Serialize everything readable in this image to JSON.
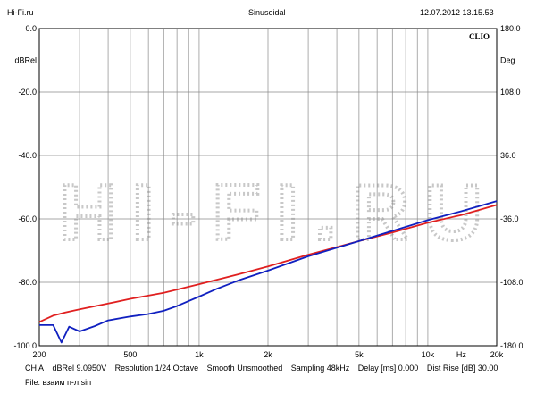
{
  "header": {
    "source": "Hi-Fi.ru",
    "mode": "Sinusoidal",
    "datetime": "12.07.2012 13.15.53"
  },
  "chart_data": {
    "type": "line",
    "brand": "CLIO",
    "watermark": "HI-FI.RU",
    "x_scale": "log",
    "xlim": [
      200,
      20000
    ],
    "x_tick_labels": [
      {
        "value": 200,
        "label": "200"
      },
      {
        "value": 500,
        "label": "500"
      },
      {
        "value": 1000,
        "label": "1k"
      },
      {
        "value": 2000,
        "label": "2k"
      },
      {
        "value": 5000,
        "label": "5k"
      },
      {
        "value": 10000,
        "label": "10k"
      },
      {
        "value": 20000,
        "label": "20k"
      }
    ],
    "x_unit_label": "Hz",
    "x_gridlines": [
      200,
      300,
      400,
      500,
      600,
      700,
      800,
      900,
      1000,
      2000,
      3000,
      4000,
      5000,
      6000,
      7000,
      8000,
      9000,
      10000,
      20000
    ],
    "y_left": {
      "label": "dBRel",
      "ylim": [
        -100,
        0
      ],
      "ticks": [
        0,
        -20,
        -40,
        -60,
        -80,
        -100
      ],
      "tick_labels": [
        "0.0",
        "-20.0",
        "-40.0",
        "-60.0",
        "-80.0",
        "-100.0"
      ]
    },
    "y_right": {
      "label": "Deg",
      "ylim": [
        -180,
        180
      ],
      "ticks": [
        180,
        108,
        36,
        -36,
        -108,
        -180
      ],
      "tick_labels": [
        "180.0",
        "108.0",
        "36.0",
        "-36.0",
        "-108.0",
        "-180.0"
      ]
    },
    "grid": true,
    "series": [
      {
        "color": "#e02020",
        "x": [
          200,
          230,
          260,
          300,
          400,
          500,
          700,
          1000,
          1500,
          2000,
          3000,
          4000,
          5000,
          7000,
          10000,
          14000,
          20000
        ],
        "y": [
          -92.5,
          -90.5,
          -89.5,
          -88.5,
          -86.7,
          -85.2,
          -83.3,
          -80.6,
          -77.4,
          -75.0,
          -71.3,
          -68.9,
          -67.0,
          -64.3,
          -61.2,
          -58.8,
          -55.6
        ]
      },
      {
        "color": "#1020c0",
        "x": [
          200,
          230,
          250,
          270,
          300,
          350,
          400,
          500,
          600,
          700,
          800,
          1000,
          1200,
          1500,
          2000,
          3000,
          4000,
          5000,
          7000,
          10000,
          14000,
          20000
        ],
        "y": [
          -93.5,
          -93.5,
          -99.0,
          -94.0,
          -95.5,
          -93.8,
          -92.0,
          -90.8,
          -90.0,
          -89.0,
          -87.5,
          -84.5,
          -82.0,
          -79.3,
          -76.3,
          -71.8,
          -69.1,
          -67.0,
          -63.8,
          -60.4,
          -57.6,
          -54.4
        ]
      }
    ]
  },
  "footer": {
    "channel": "CH A",
    "level": "dBRel 9.0950V",
    "resolution": "Resolution 1/24 Octave",
    "smooth": "Smooth Unsmoothed",
    "sampling": "Sampling 48kHz",
    "delay": "Delay [ms] 0.000",
    "dist_rise": "Dist Rise [dB] 30.00",
    "file": "File: взаим п-л.sin"
  }
}
